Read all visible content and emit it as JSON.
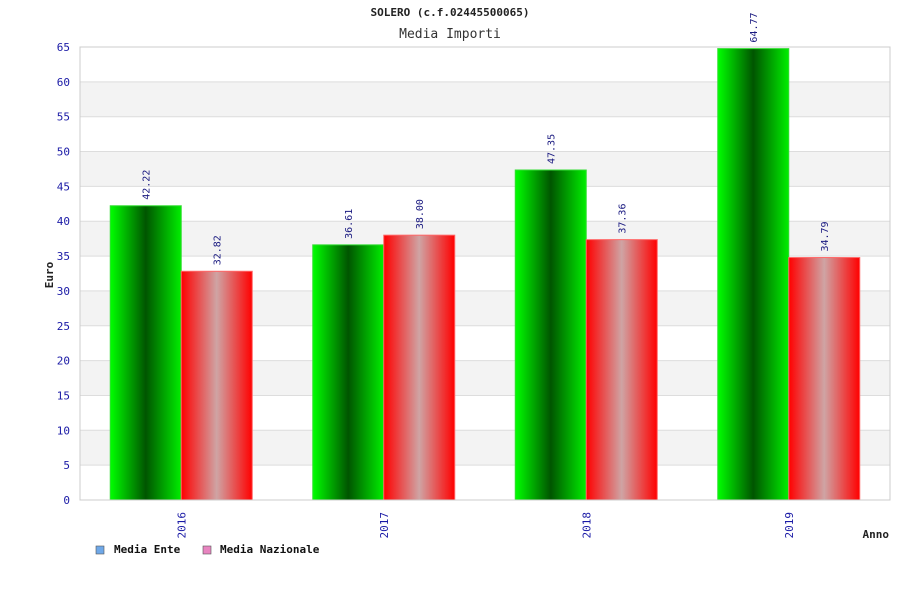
{
  "chart_data": {
    "type": "bar",
    "title": "SOLERO (c.f.02445500065)",
    "subtitle": "Media Importi",
    "xlabel": "Anno",
    "ylabel": "Euro",
    "categories": [
      "2016",
      "2017",
      "2018",
      "2019"
    ],
    "series": [
      {
        "name": "Media Ente",
        "values": [
          42.22,
          36.61,
          47.35,
          64.77
        ],
        "labels": [
          "42.22",
          "36.61",
          "47.35",
          "64.77"
        ],
        "color": "#00cc00",
        "legend_color": "#6fa8e8"
      },
      {
        "name": "Media Nazionale",
        "values": [
          32.82,
          38.0,
          37.36,
          34.79
        ],
        "labels": [
          "32.82",
          "38.00",
          "37.36",
          "34.79"
        ],
        "color": "#ff0000",
        "legend_color": "#e884c0"
      }
    ],
    "ylim": [
      0,
      65
    ],
    "yticks": [
      0,
      5,
      10,
      15,
      20,
      25,
      30,
      35,
      40,
      45,
      50,
      55,
      60,
      65
    ],
    "grid": true,
    "legend_position": "bottom-left"
  }
}
